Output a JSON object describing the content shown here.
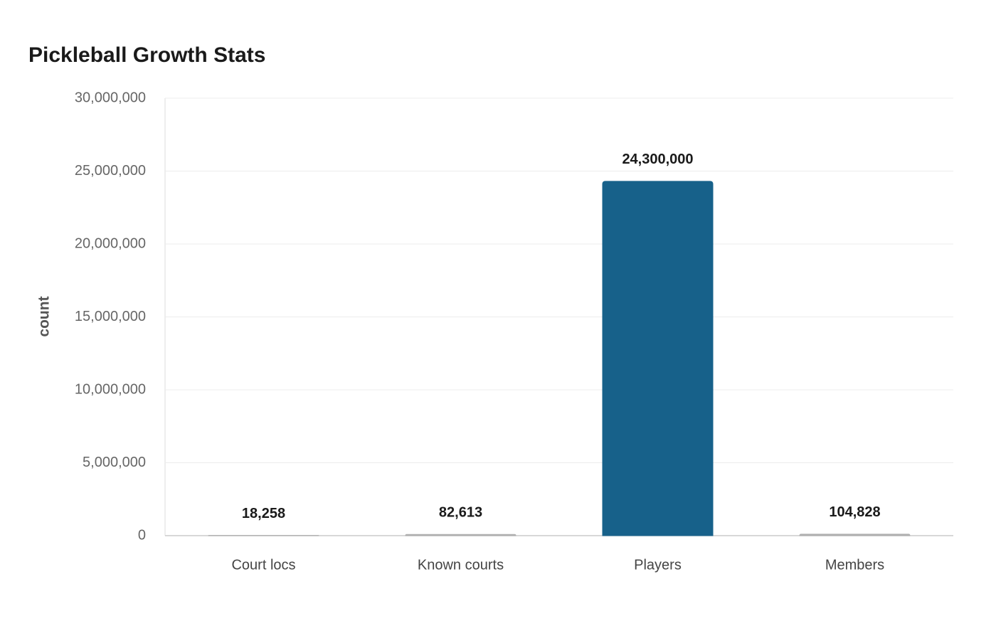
{
  "chart_data": {
    "type": "bar",
    "title": "Pickleball Growth Stats",
    "y_label": "count",
    "categories": [
      "Court locs",
      "Known courts",
      "Players",
      "Members"
    ],
    "values": [
      18258,
      82613,
      24300000,
      104828
    ],
    "value_labels": [
      "18,258",
      "82,613",
      "24,300,000",
      "104,828"
    ],
    "colors": [
      "#b0b0b0",
      "#b0b0b0",
      "#17618a",
      "#b0b0b0"
    ],
    "ylim": [
      0,
      30000000
    ],
    "yticks": [
      0,
      {
        "value": 5000000,
        "label": "5,000,000"
      },
      {
        "value": 10000000,
        "label": "10,000,000"
      },
      {
        "value": 15000000,
        "label": "15,000,000"
      },
      {
        "value": 20000000,
        "label": "20,000,000"
      },
      {
        "value": 25000000,
        "label": "25,000,000"
      },
      {
        "value": 30000000,
        "label": "30,000,000"
      }
    ],
    "grid": true
  }
}
